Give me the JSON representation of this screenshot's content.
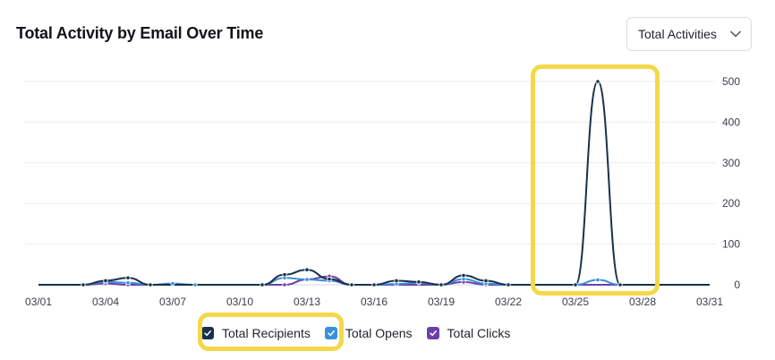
{
  "header": {
    "title": "Total Activity by Email Over Time",
    "dropdown_value": "Total Activities"
  },
  "colors": {
    "recipients": "#17324a",
    "opens": "#3a8fdc",
    "clicks": "#6b3fa8",
    "highlight": "#f4d84a",
    "grid": "#ececec"
  },
  "icons": {
    "dropdown": "chevron-down-icon",
    "checkbox": "check-icon"
  },
  "chart_data": {
    "type": "line",
    "title": "Total Activity by Email Over Time",
    "xlabel": "",
    "ylabel": "",
    "x_start": "03/01",
    "x_end": "03/31",
    "x_ticks": [
      "03/01",
      "03/04",
      "03/07",
      "03/10",
      "03/13",
      "03/16",
      "03/19",
      "03/22",
      "03/25",
      "03/28",
      "03/31"
    ],
    "ylim": [
      0,
      500
    ],
    "y_ticks": [
      0,
      100,
      200,
      300,
      400,
      500
    ],
    "y_axis_position": "right",
    "grid": true,
    "legend_position": "bottom",
    "x": [
      "03/01",
      "03/02",
      "03/03",
      "03/04",
      "03/05",
      "03/06",
      "03/07",
      "03/08",
      "03/09",
      "03/10",
      "03/11",
      "03/12",
      "03/13",
      "03/14",
      "03/15",
      "03/16",
      "03/17",
      "03/18",
      "03/19",
      "03/20",
      "03/21",
      "03/22",
      "03/23",
      "03/24",
      "03/25",
      "03/26",
      "03/27",
      "03/28",
      "03/29",
      "03/30",
      "03/31"
    ],
    "series": [
      {
        "name": "Total Recipients",
        "color": "#17324a",
        "values": [
          0,
          0,
          0,
          10,
          17,
          0,
          0,
          0,
          0,
          0,
          0,
          25,
          37,
          14,
          0,
          0,
          10,
          7,
          0,
          23,
          10,
          0,
          0,
          0,
          0,
          500,
          0,
          0,
          0,
          0,
          0
        ]
      },
      {
        "name": "Total Opens",
        "color": "#3a8fdc",
        "values": [
          0,
          0,
          0,
          7,
          5,
          0,
          3,
          0,
          0,
          0,
          0,
          17,
          13,
          10,
          0,
          0,
          2,
          5,
          0,
          14,
          3,
          0,
          0,
          0,
          0,
          12,
          0,
          0,
          0,
          0,
          0
        ]
      },
      {
        "name": "Total Clicks",
        "color": "#6b3fa8",
        "values": [
          0,
          0,
          0,
          3,
          0,
          0,
          0,
          0,
          0,
          0,
          0,
          0,
          13,
          21,
          0,
          0,
          0,
          0,
          0,
          7,
          0,
          0,
          0,
          0,
          0,
          0,
          0,
          0,
          0,
          0,
          0
        ]
      }
    ],
    "annotations": [
      {
        "type": "highlight",
        "target": "peak 03/26"
      },
      {
        "type": "highlight",
        "target": "legend Total Recipients"
      }
    ]
  },
  "legend": [
    {
      "label": "Total Recipients",
      "checked": true
    },
    {
      "label": "Total Opens",
      "checked": true
    },
    {
      "label": "Total Clicks",
      "checked": true
    }
  ]
}
